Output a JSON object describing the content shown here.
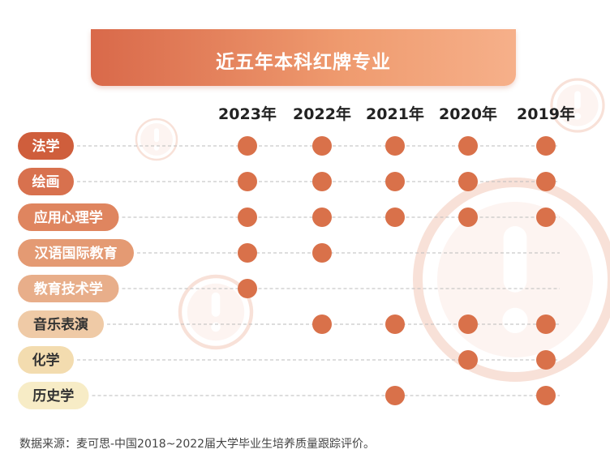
{
  "title": "近五年本科红牌专业",
  "source_note": "数据来源：麦可思-中国2018~2022届大学毕业生培养质量跟踪评价。",
  "colors": {
    "dot": "#d9714a",
    "line": "#bbbbbb",
    "watermark": "#f3c9b9"
  },
  "chart_data": {
    "type": "table",
    "years": [
      "2023年",
      "2022年",
      "2021年",
      "2020年",
      "2019年"
    ],
    "majors": [
      {
        "name": "法学",
        "color": "#cf5e3c",
        "text_color": "#ffffff",
        "flags": [
          1,
          1,
          1,
          1,
          1
        ]
      },
      {
        "name": "绘画",
        "color": "#d8714e",
        "text_color": "#ffffff",
        "flags": [
          1,
          1,
          1,
          1,
          1
        ]
      },
      {
        "name": "应用心理学",
        "color": "#df855f",
        "text_color": "#ffffff",
        "flags": [
          1,
          1,
          1,
          1,
          1
        ]
      },
      {
        "name": "汉语国际教育",
        "color": "#e49a73",
        "text_color": "#ffffff",
        "flags": [
          1,
          1,
          0,
          0,
          0
        ]
      },
      {
        "name": "教育技术学",
        "color": "#e8ae8a",
        "text_color": "#ffffff",
        "flags": [
          1,
          0,
          0,
          0,
          0
        ]
      },
      {
        "name": "音乐表演",
        "color": "#efcaa6",
        "text_color": "#333333",
        "flags": [
          0,
          1,
          1,
          1,
          1
        ]
      },
      {
        "name": "化学",
        "color": "#f3dcaf",
        "text_color": "#333333",
        "flags": [
          0,
          0,
          0,
          1,
          1
        ]
      },
      {
        "name": "历史学",
        "color": "#f7ecc6",
        "text_color": "#333333",
        "flags": [
          0,
          0,
          1,
          0,
          1
        ]
      }
    ]
  }
}
